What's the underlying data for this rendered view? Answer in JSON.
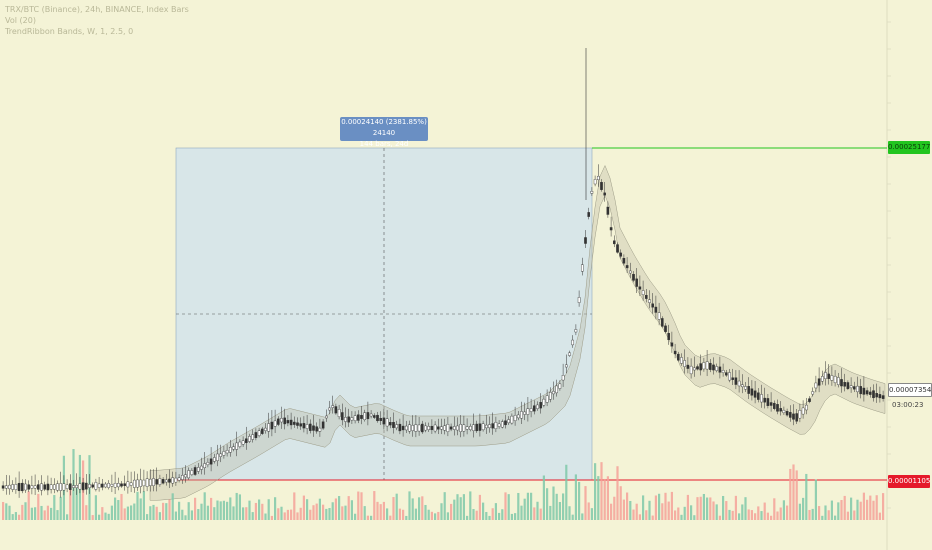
{
  "legend": {
    "line1": "TRX/BTC (Binance), 24h, BINANCE, Index Bars",
    "line2": "Vol (20)",
    "line3": "TrendRibbon Bands, W, 1, 2.5, 0"
  },
  "measure": {
    "line1": "0.00024140 (2381.85%) 24140",
    "line2": "144 bars, 24d"
  },
  "price_tags": {
    "high": "0.00025177",
    "low": "0.00001105",
    "current": "0.00007354",
    "countdown": "03:00:23"
  },
  "colors": {
    "background": "#f4f3d6",
    "bull": "#4caf50",
    "bear": "#e57373",
    "volume_bull": "#7fc8a9",
    "volume_bear": "#f4a199",
    "highline": "#22c51f",
    "lowline": "#e5192a",
    "measure_box": "#cfe2ee"
  },
  "icons": []
}
